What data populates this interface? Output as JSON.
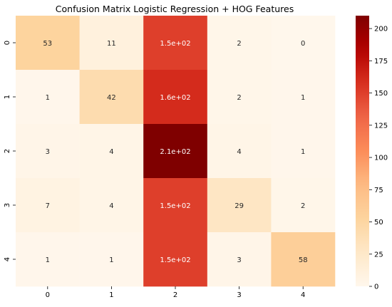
{
  "chart_data": {
    "type": "heatmap",
    "title": "Confusion Matrix Logistic Regression + HOG Features",
    "xlabel": "",
    "ylabel": "",
    "x_tick_labels": [
      "0",
      "1",
      "2",
      "3",
      "4"
    ],
    "y_tick_labels": [
      "0",
      "1",
      "2",
      "3",
      "4"
    ],
    "values": [
      [
        53,
        11,
        150,
        2,
        0
      ],
      [
        1,
        42,
        160,
        2,
        1
      ],
      [
        3,
        4,
        210,
        4,
        1
      ],
      [
        7,
        4,
        150,
        29,
        2
      ],
      [
        1,
        1,
        150,
        3,
        58
      ]
    ],
    "cell_labels": [
      [
        "53",
        "11",
        "1.5e+02",
        "2",
        "0"
      ],
      [
        "1",
        "42",
        "1.6e+02",
        "2",
        "1"
      ],
      [
        "3",
        "4",
        "2.1e+02",
        "4",
        "1"
      ],
      [
        "7",
        "4",
        "1.5e+02",
        "29",
        "2"
      ],
      [
        "1",
        "1",
        "1.5e+02",
        "3",
        "58"
      ]
    ],
    "colormap": "OrRd",
    "colorbar": {
      "min": 0,
      "max": 210,
      "ticks": [
        0,
        25,
        50,
        75,
        100,
        125,
        150,
        175,
        200
      ],
      "tick_labels": [
        "0",
        "25",
        "50",
        "75",
        "100",
        "125",
        "150",
        "175",
        "200"
      ]
    },
    "grid": false
  }
}
